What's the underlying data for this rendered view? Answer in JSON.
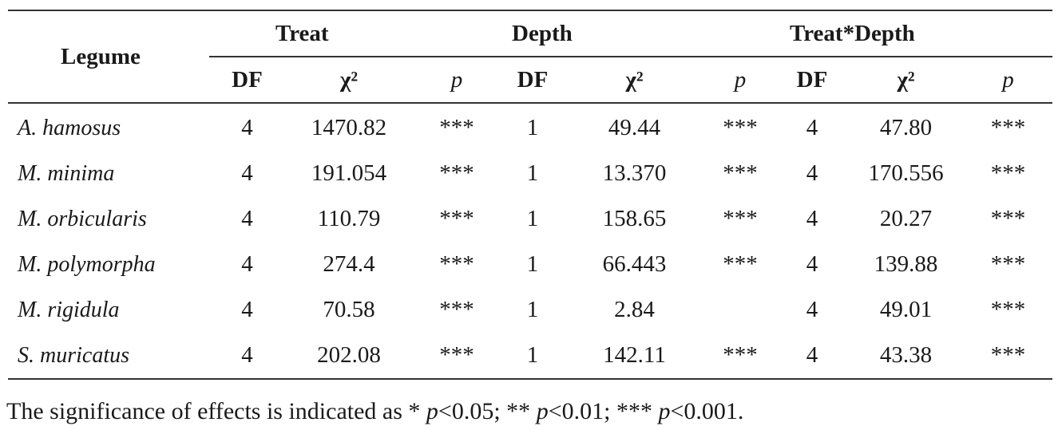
{
  "table": {
    "legume_header": "Legume",
    "groups": [
      "Treat",
      "Depth",
      "Treat*Depth"
    ],
    "subheaders": [
      "DF",
      "χ²",
      "p",
      "DF",
      "χ²",
      "p",
      "DF",
      "χ²",
      "p"
    ],
    "rows": [
      {
        "legume": "A. hamosus",
        "cells": [
          "4",
          "1470.82",
          "***",
          "1",
          "49.44",
          "***",
          "4",
          "47.80",
          "***"
        ]
      },
      {
        "legume": "M. minima",
        "cells": [
          "4",
          "191.054",
          "***",
          "1",
          "13.370",
          "***",
          "4",
          "170.556",
          "***"
        ]
      },
      {
        "legume": "M. orbicularis",
        "cells": [
          "4",
          "110.79",
          "***",
          "1",
          "158.65",
          "***",
          "4",
          "20.27",
          "***"
        ]
      },
      {
        "legume": "M. polymorpha",
        "cells": [
          "4",
          "274.4",
          "***",
          "1",
          "66.443",
          "***",
          "4",
          "139.88",
          "***"
        ]
      },
      {
        "legume": "M. rigidula",
        "cells": [
          "4",
          "70.58",
          "***",
          "1",
          "2.84",
          "",
          "4",
          "49.01",
          "***"
        ]
      },
      {
        "legume": "S. muricatus",
        "cells": [
          "4",
          "202.08",
          "***",
          "1",
          "142.11",
          "***",
          "4",
          "43.38",
          "***"
        ]
      }
    ]
  },
  "note": {
    "prefix": "The significance of effects is indicated as * ",
    "p1": "p",
    "t1": "<0.05; ** ",
    "p2": "p",
    "t2": "<0.01; *** ",
    "p3": "p",
    "t3": "<0.001."
  }
}
